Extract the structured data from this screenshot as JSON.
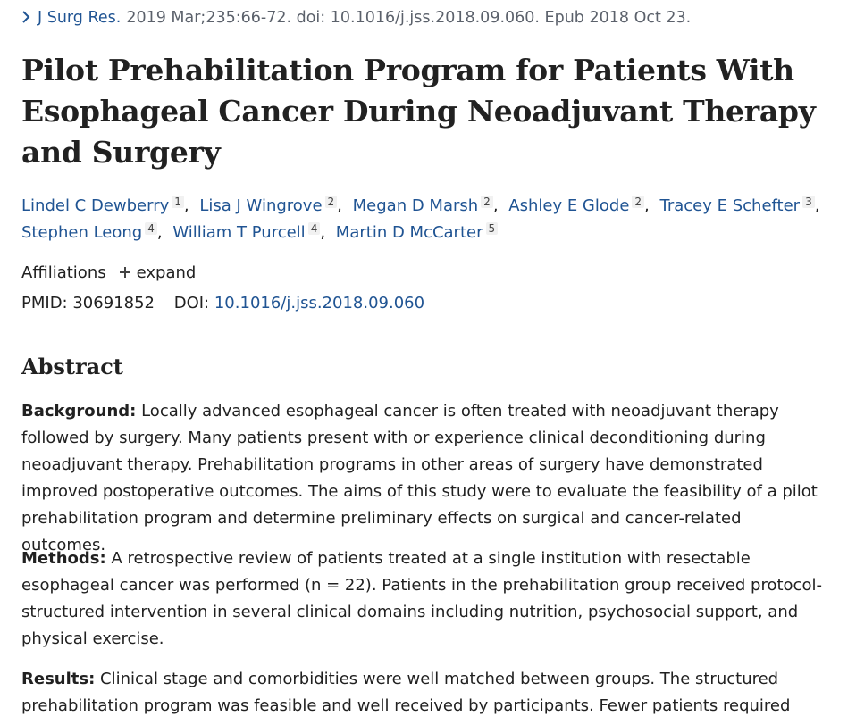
{
  "citation": {
    "icon": "chevron-right-icon",
    "journal": "J Surg Res.",
    "details": "2019 Mar;235:66-72. doi: 10.1016/j.jss.2018.09.060. Epub 2018 Oct 23."
  },
  "title": "Pilot Prehabilitation Program for Patients With Esophageal Cancer During Neoadjuvant Therapy and Surgery",
  "authors": [
    {
      "name": "Lindel C Dewberry",
      "aff": "1"
    },
    {
      "name": "Lisa J Wingrove",
      "aff": "2"
    },
    {
      "name": "Megan D Marsh",
      "aff": "2"
    },
    {
      "name": "Ashley E Glode",
      "aff": "2"
    },
    {
      "name": "Tracey E Schefter",
      "aff": "3"
    },
    {
      "name": "Stephen Leong",
      "aff": "4"
    },
    {
      "name": "William T Purcell",
      "aff": "4"
    },
    {
      "name": "Martin D McCarter",
      "aff": "5"
    }
  ],
  "affiliations": {
    "label": "Affiliations",
    "expand_icon": "plus-icon",
    "expand_label": "expand"
  },
  "ids": {
    "pmid_label": "PMID:",
    "pmid": "30691852",
    "doi_label": "DOI:",
    "doi": "10.1016/j.jss.2018.09.060"
  },
  "abstract": {
    "heading": "Abstract",
    "background_label": "Background:",
    "background_text": "Locally advanced esophageal cancer is often treated with neoadjuvant therapy followed by surgery. Many patients present with or experience clinical deconditioning during neoadjuvant therapy. Prehabilitation programs in other areas of surgery have demonstrated improved postoperative outcomes. The aims of this study were to evaluate the feasibility of a pilot prehabilitation program and determine preliminary effects on surgical and cancer-related outcomes.",
    "methods_label": "Methods:",
    "methods_text": "A retrospective review of patients treated at a single institution with resectable esophageal cancer was performed (n = 22). Patients in the prehabilitation group received protocol-structured intervention in several clinical domains including nutrition, psychosocial support, and physical exercise.",
    "results_label": "Results:",
    "results_text": "Clinical stage and comorbidities were well matched between groups. The structured prehabilitation program was feasible and well received by participants. Fewer patients required"
  },
  "colors": {
    "link": "#205493",
    "text": "#212121",
    "muted": "#5b616b"
  }
}
